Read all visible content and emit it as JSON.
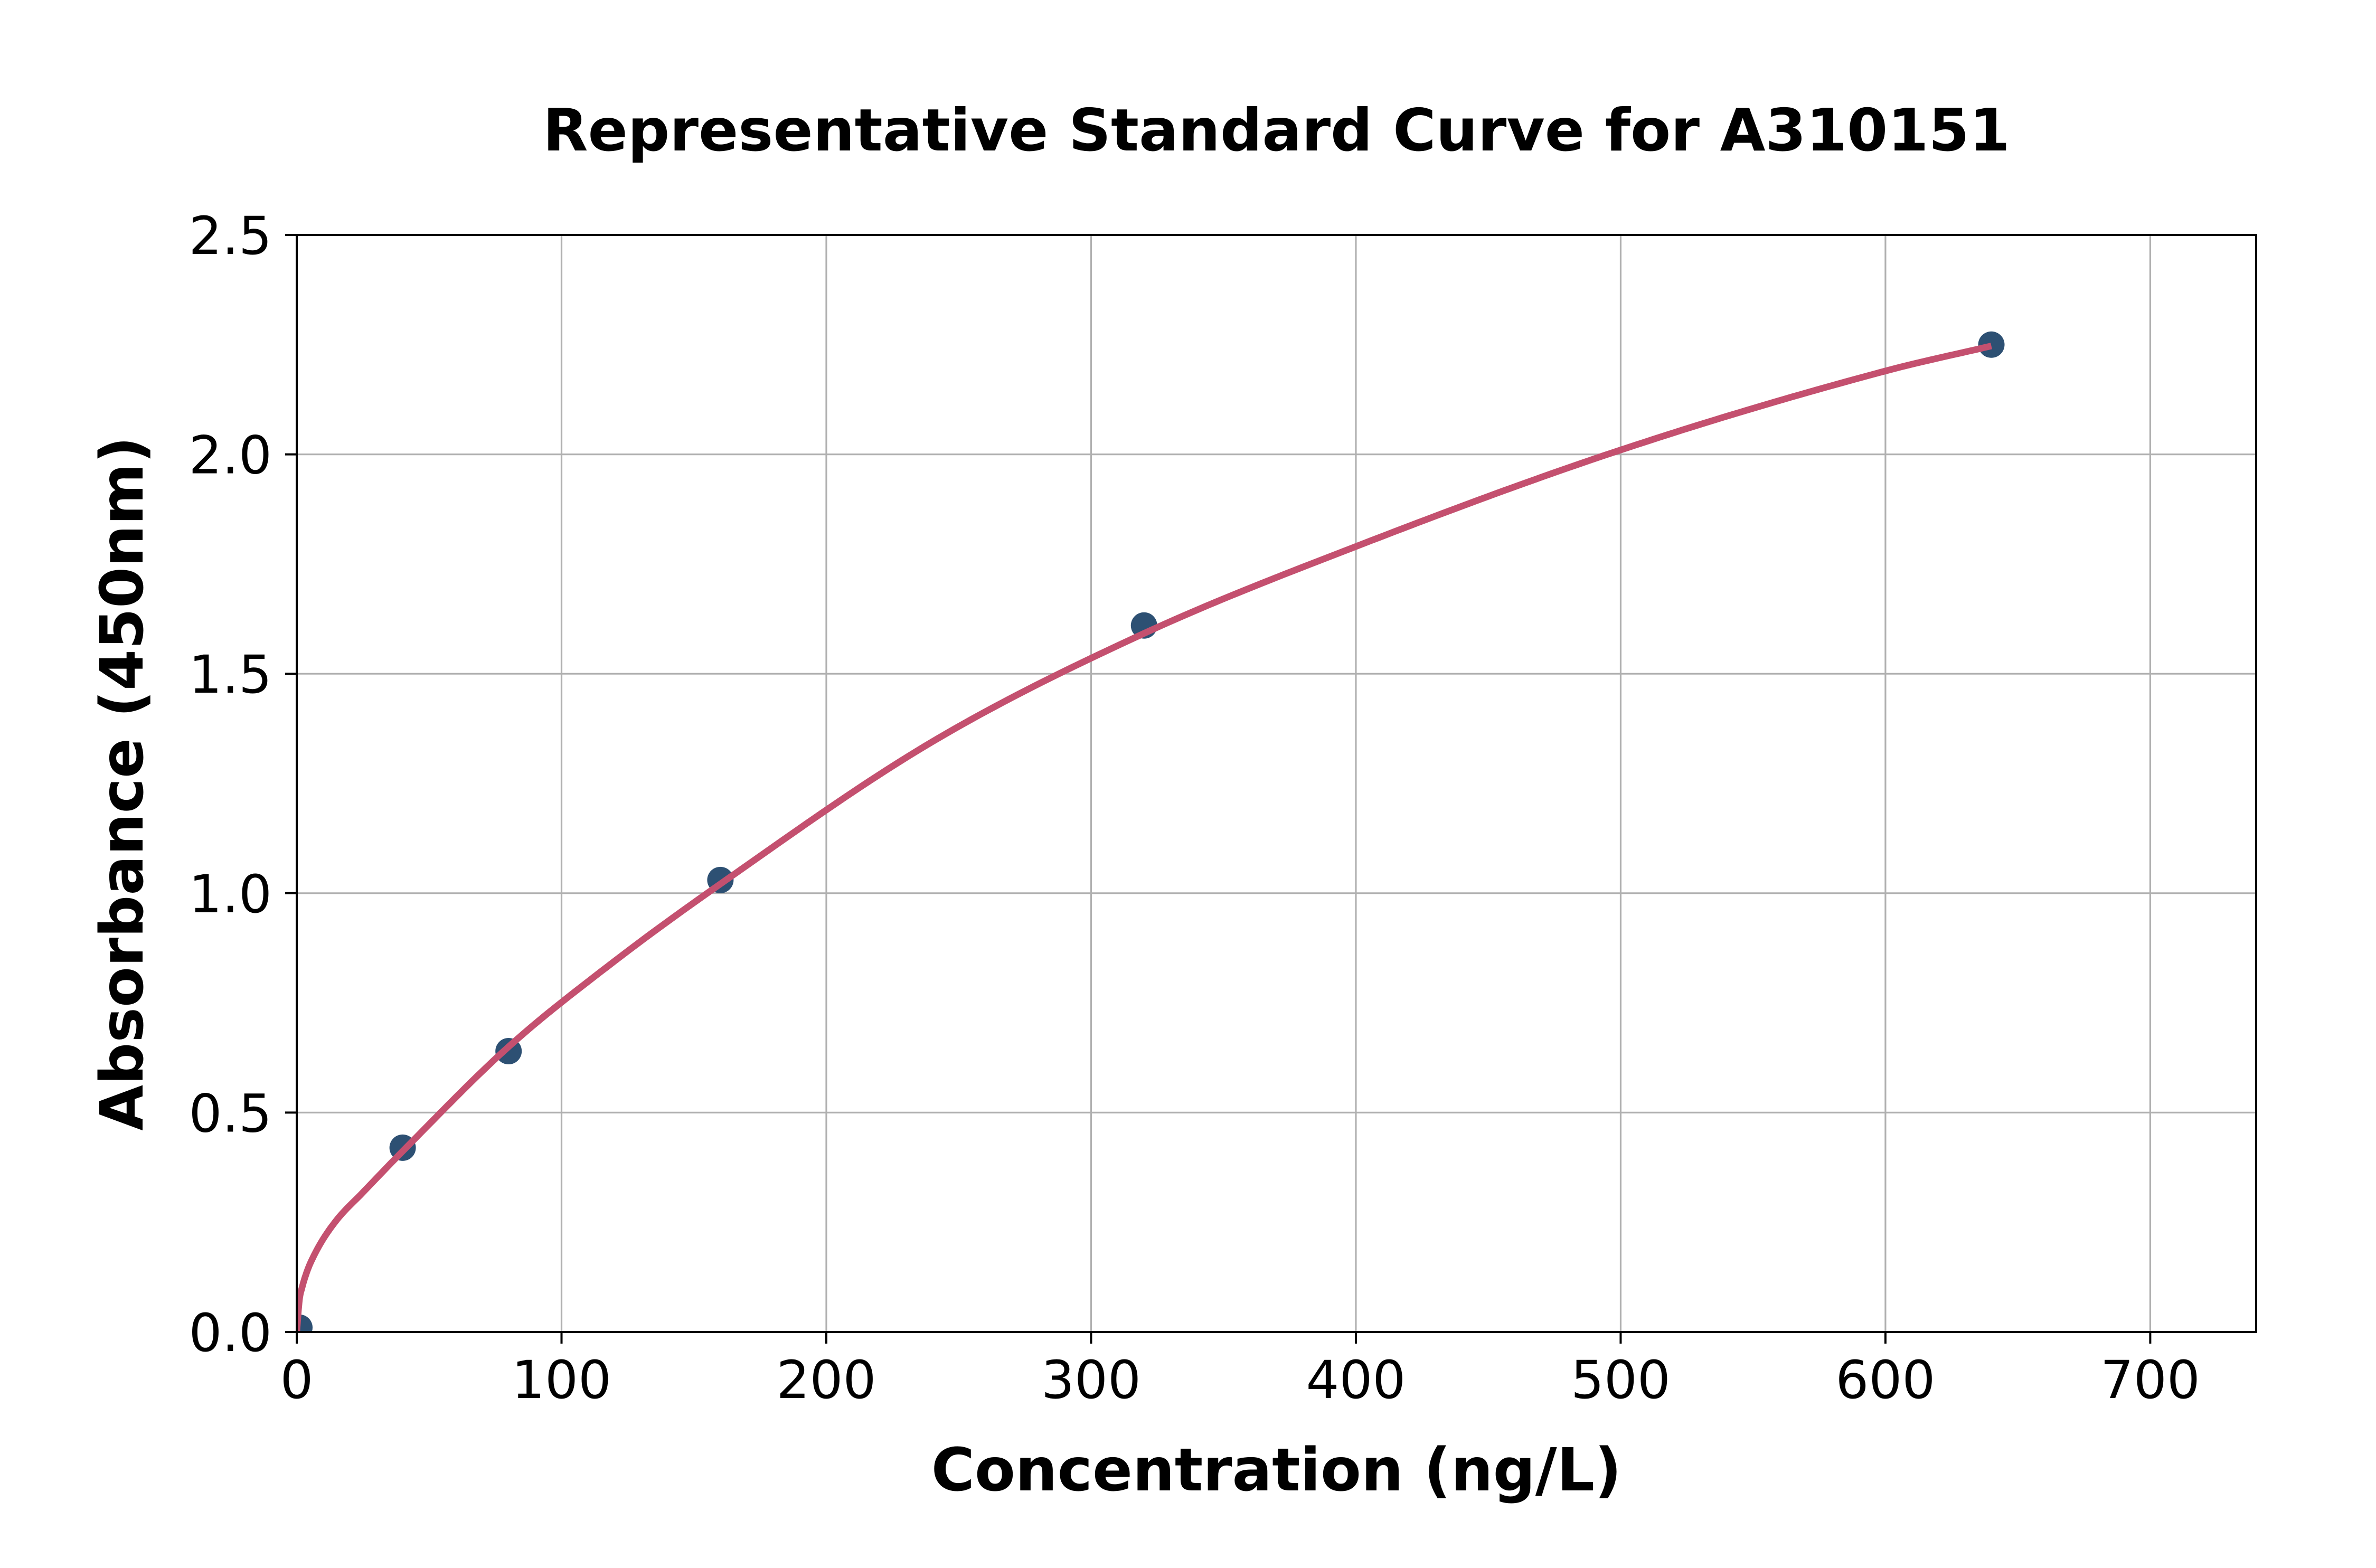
{
  "chart_data": {
    "type": "scatter",
    "title": "Representative Standard Curve for A310151",
    "xlabel": "Concentration (ng/L)",
    "ylabel": "Absorbance (450nm)",
    "xlim": [
      0,
      740
    ],
    "ylim": [
      0,
      2.5
    ],
    "xticks": [
      0,
      100,
      200,
      300,
      400,
      500,
      600,
      700
    ],
    "xtick_labels": [
      "0",
      "100",
      "200",
      "300",
      "400",
      "500",
      "600",
      "700"
    ],
    "yticks": [
      0.0,
      0.5,
      1.0,
      1.5,
      2.0,
      2.5
    ],
    "ytick_labels": [
      "0.0",
      "0.5",
      "1.0",
      "1.5",
      "2.0",
      "2.5"
    ],
    "grid": true,
    "points": [
      [
        1,
        0.01
      ],
      [
        40,
        0.42
      ],
      [
        80,
        0.64
      ],
      [
        160,
        1.03
      ],
      [
        320,
        1.61
      ],
      [
        640,
        2.25
      ]
    ],
    "fit_curve": {
      "x": [
        0,
        1,
        2,
        4,
        6,
        10,
        16,
        24,
        40,
        80,
        120,
        160,
        240,
        320,
        400,
        500,
        600,
        640
      ],
      "y": [
        0,
        0.073,
        0.101,
        0.14,
        0.168,
        0.212,
        0.262,
        0.312,
        0.412,
        0.65,
        0.845,
        1.021,
        1.345,
        1.592,
        1.79,
        2.01,
        2.19,
        2.247
      ]
    },
    "colors": {
      "marker": "#2d5073",
      "line": "#c4506f",
      "grid": "#b0b0b0",
      "spine": "#000000",
      "background": "#ffffff"
    }
  }
}
